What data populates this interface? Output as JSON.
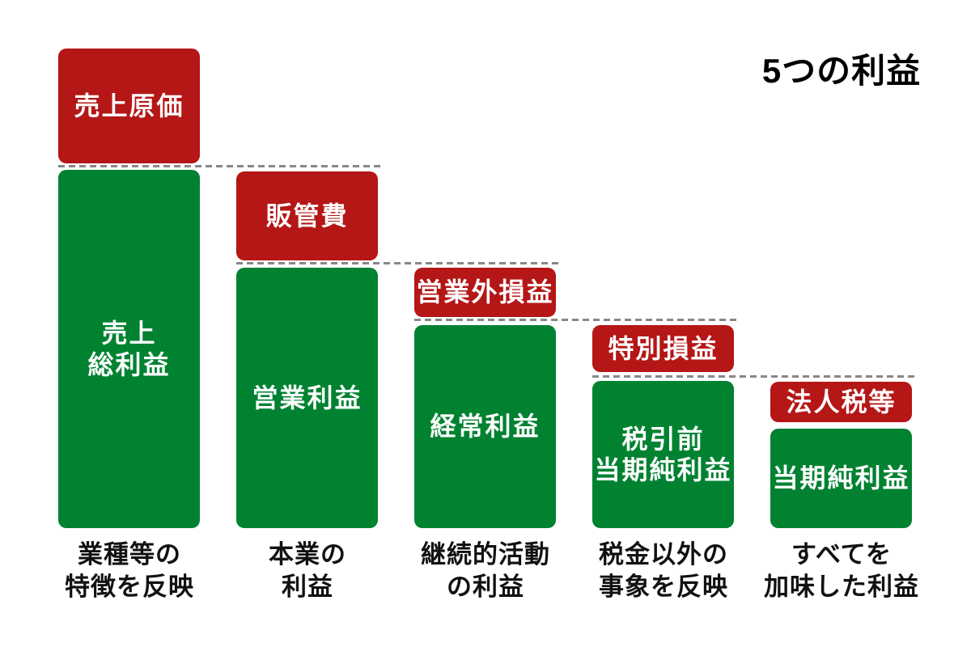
{
  "title": "5つの利益",
  "colors": {
    "expense_red": "#b51616",
    "profit_green": "#008231",
    "divider_gray": "#888888",
    "box_text": "#ffffff",
    "caption_text": "#111111",
    "background": "#ffffff"
  },
  "columns": [
    {
      "expense": "売上原価",
      "profit": "売上\n総利益",
      "caption": "業種等の\n特徴を反映"
    },
    {
      "expense": "販管費",
      "profit": "営業利益",
      "caption": "本業の\n利益"
    },
    {
      "expense": "営業外損益",
      "profit": "経常利益",
      "caption": "継続的活動\nの利益"
    },
    {
      "expense": "特別損益",
      "profit": "税引前\n当期純利益",
      "caption": "税金以外の\n事象を反映"
    },
    {
      "expense": "法人税等",
      "profit": "当期純利益",
      "caption": "すべてを\n加味した利益"
    }
  ]
}
